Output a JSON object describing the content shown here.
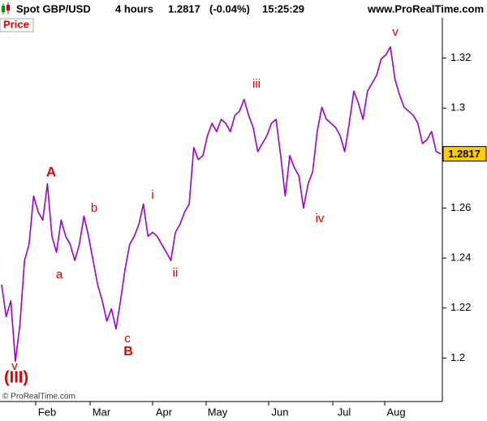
{
  "chart_data": {
    "type": "line",
    "header": {
      "instrument": "Spot GBP/USD",
      "timeframe": "4 hours",
      "change": "(-0.04%)",
      "time": "15:25:29",
      "site": "www.ProRealTime.com"
    },
    "panel_label": "Price",
    "copyright": "© ProRealTime.com",
    "last_price": 1.2817,
    "color": "#9b00d0",
    "months": [
      "Feb",
      "Mar",
      "Apr",
      "May",
      "Jun",
      "Jul",
      "Aug"
    ],
    "values": [
      1.2294,
      1.2165,
      1.2229,
      1.1987,
      1.2132,
      1.239,
      1.2455,
      1.2648,
      1.2584,
      1.2552,
      1.2697,
      1.2487,
      1.2423,
      1.2552,
      1.2487,
      1.2455,
      1.239,
      1.2455,
      1.2568,
      1.2487,
      1.239,
      1.2294,
      1.2229,
      1.2148,
      1.2197,
      1.2116,
      1.2229,
      1.2358,
      1.2455,
      1.2487,
      1.2535,
      1.2616,
      1.2487,
      1.2503,
      1.2487,
      1.2455,
      1.2423,
      1.239,
      1.2503,
      1.2535,
      1.2584,
      1.2616,
      1.2842,
      1.2794,
      1.281,
      1.289,
      1.2939,
      1.2906,
      1.2955,
      1.2939,
      1.2906,
      1.2971,
      1.2987,
      1.3035,
      1.2971,
      1.2923,
      1.2826,
      1.2858,
      1.289,
      1.2939,
      1.2955,
      1.281,
      1.2648,
      1.281,
      1.2761,
      1.2729,
      1.26,
      1.2697,
      1.2745,
      1.2906,
      1.3003,
      1.2955,
      1.2939,
      1.2923,
      1.289,
      1.2826,
      1.2939,
      1.3068,
      1.3019,
      1.2955,
      1.3068,
      1.31,
      1.3132,
      1.3197,
      1.3213,
      1.3245,
      1.3116,
      1.3052,
      1.3003,
      1.2987,
      1.2971,
      1.2939,
      1.2858,
      1.2874,
      1.2906,
      1.2826,
      1.2817
    ],
    "ylim": [
      1.1826,
      1.3361
    ],
    "yticks": [
      1.2,
      1.22,
      1.24,
      1.26,
      1.3,
      1.32
    ],
    "annotations": [
      "A",
      "a",
      "b",
      "c",
      "B",
      "i",
      "ii",
      "iii",
      "iv",
      "v",
      "v",
      "(III)"
    ]
  }
}
